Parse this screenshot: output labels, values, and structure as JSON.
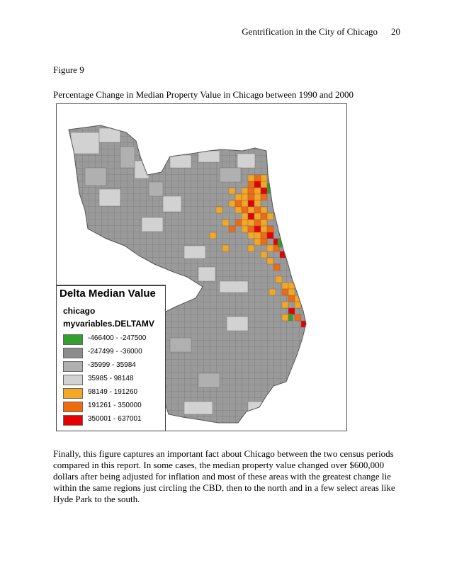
{
  "header": {
    "title": "Gentrification in the City of Chicago",
    "page_number": "20"
  },
  "figure": {
    "label": "Figure 9",
    "caption": "Percentage Change in Median Property Value in Chicago between 1990 and 2000"
  },
  "legend": {
    "title": "Delta Median Value",
    "layer": "chicago",
    "field": "myvariables.DELTAMV",
    "classes": [
      {
        "range": "-466400 - -247500",
        "color": "#33a02c"
      },
      {
        "range": "-247499 - -36000",
        "color": "#8c8c8c"
      },
      {
        "range": "-35999 - 35984",
        "color": "#b0b0b0"
      },
      {
        "range": "35985 - 98148",
        "color": "#d2d2d2"
      },
      {
        "range": "98149 - 191260",
        "color": "#f5a623"
      },
      {
        "range": "191261 - 350000",
        "color": "#f06a10"
      },
      {
        "range": "350001 - 637001",
        "color": "#e60000"
      }
    ]
  },
  "body": {
    "lines": [
      "Finally, this figure captures an important fact about Chicago between the two census periods",
      "compared in this report.  In some cases, the median property value changed over $600,000",
      "dollars after being adjusted for inflation and most of these areas with the greatest change lie",
      "within the same regions just circling the CBD, then to the north and in a few select areas like",
      "Hyde Park to the south."
    ]
  }
}
